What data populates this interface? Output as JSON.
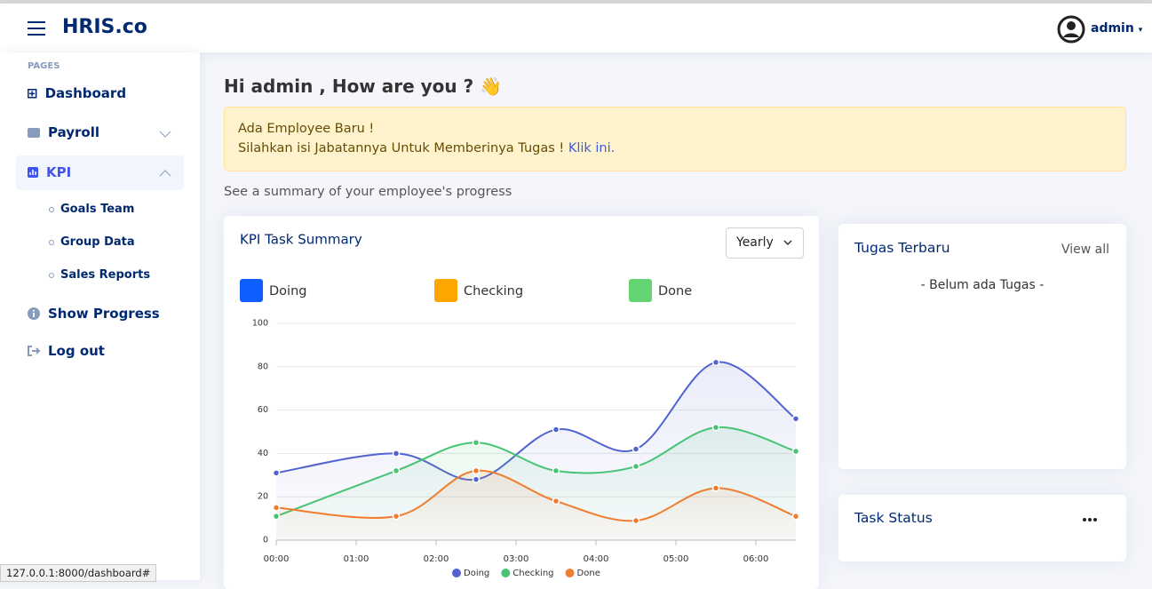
{
  "header": {
    "brand": "HRIS.co",
    "user": "admin"
  },
  "sidebar": {
    "section": "PAGES",
    "items": [
      {
        "label": "Dashboard"
      },
      {
        "label": "Payroll"
      },
      {
        "label": "KPI",
        "children": [
          "Goals Team",
          "Group Data",
          "Sales Reports"
        ]
      },
      {
        "label": "Show Progress"
      },
      {
        "label": "Log out"
      }
    ]
  },
  "greeting": "Hi admin , How are you ? 👋",
  "alert": {
    "title": "Ada Employee Baru !",
    "text": "Silahkan isi Jabatannya Untuk Memberinya Tugas !",
    "link": "Klik ini."
  },
  "summary": "See a summary of your employee's progress",
  "period_select": "Yearly",
  "chart_data": {
    "type": "line",
    "title": "KPI Task Summary",
    "x": [
      "00:00",
      "01:30",
      "02:30",
      "03:30",
      "04:30",
      "05:30",
      "06:30"
    ],
    "xlim": [
      "00:00",
      "06:30"
    ],
    "xticks": [
      "00:00",
      "01:00",
      "02:00",
      "03:00",
      "04:00",
      "05:00",
      "06:00"
    ],
    "ylim": [
      0,
      100
    ],
    "yticks": [
      0,
      20,
      40,
      60,
      80,
      100
    ],
    "grid": true,
    "series": [
      {
        "name": "Doing",
        "color": "#5163cf",
        "values": [
          31,
          40,
          28,
          51,
          42,
          82,
          56
        ]
      },
      {
        "name": "Checking",
        "color": "#46c373",
        "values": [
          11,
          32,
          45,
          32,
          34,
          52,
          41
        ]
      },
      {
        "name": "Done",
        "color": "#f07d2e",
        "values": [
          15,
          11,
          32,
          18,
          9,
          24,
          11
        ]
      }
    ]
  },
  "tasks": {
    "title": "Tugas Terbaru",
    "link": "View all",
    "empty": "- Belum ada Tugas -"
  },
  "task_status": {
    "title": "Task Status"
  },
  "status_url": "127.0.0.1:8000/dashboard#"
}
